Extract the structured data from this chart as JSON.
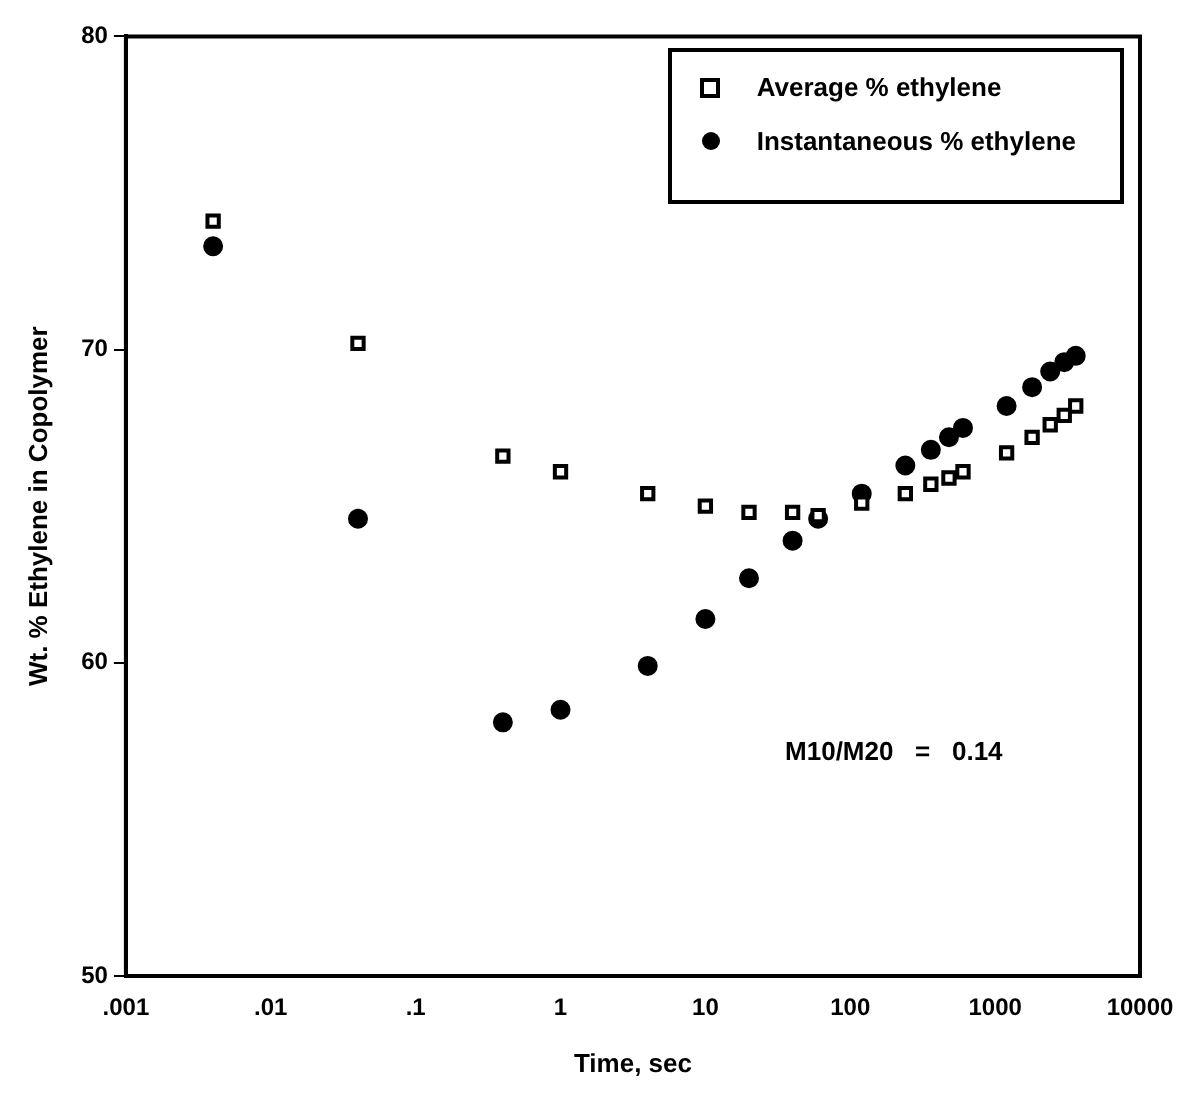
{
  "chart_data": {
    "type": "scatter",
    "xlabel": "Time, sec",
    "ylabel": "Wt. % Ethylene in Copolymer",
    "log": "x",
    "xlim": [
      0.001,
      10000
    ],
    "xticks": [
      {
        "value": 0.001,
        "label": ".001"
      },
      {
        "value": 0.01,
        "label": ".01"
      },
      {
        "value": 0.1,
        "label": ".1"
      },
      1,
      10,
      100,
      1000,
      10000
    ],
    "ylim": [
      50,
      80
    ],
    "yticks": [
      50,
      60,
      70,
      80
    ],
    "grid": false,
    "legend": "top right",
    "x": [
      0.004,
      0.04,
      0.4,
      1,
      4,
      10,
      20,
      40,
      60,
      120,
      240,
      360,
      480,
      600,
      1200,
      1800,
      2400,
      3000,
      3600
    ],
    "series": [
      {
        "name": "Average % ethylene",
        "color": "#000000",
        "marker": "square",
        "values": [
          74.1,
          70.2,
          66.6,
          66.1,
          65.4,
          65.0,
          64.8,
          64.8,
          64.7,
          65.1,
          65.4,
          65.7,
          65.9,
          66.1,
          66.7,
          67.2,
          67.6,
          67.9,
          68.2
        ]
      },
      {
        "name": "Instantaneous % ethylene",
        "color": "#000000",
        "marker": "circle",
        "values": [
          73.3,
          64.6,
          58.1,
          58.5,
          59.9,
          61.4,
          62.7,
          63.9,
          64.6,
          65.4,
          66.3,
          66.8,
          67.2,
          67.5,
          68.2,
          68.8,
          69.3,
          69.6,
          69.8
        ]
      }
    ],
    "annotations": [
      "M10/M20   =   0.14"
    ]
  }
}
